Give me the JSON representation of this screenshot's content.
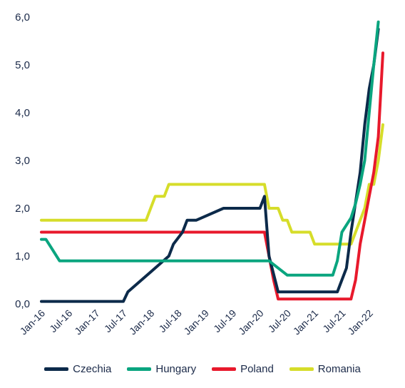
{
  "chart_data": {
    "type": "line",
    "title": "",
    "xlabel": "",
    "ylabel": "",
    "ylim": [
      0,
      6
    ],
    "y_ticks": [
      "0,0",
      "1,0",
      "2,0",
      "3,0",
      "4,0",
      "5,0",
      "6,0"
    ],
    "x_tick_labels": [
      "Jan-16",
      "Jul-16",
      "Jan-17",
      "Jul-17",
      "Jan-18",
      "Jul-18",
      "Jan-19",
      "Jul-19",
      "Jan-20",
      "Jul-20",
      "Jan-21",
      "Jul-21",
      "Jan-22"
    ],
    "x_range": [
      "2016-01",
      "2022-04"
    ],
    "grid": false,
    "legend_position": "bottom",
    "series": [
      {
        "name": "Czechia",
        "color": "#0c2a4a",
        "points": [
          [
            "2016-01",
            0.05
          ],
          [
            "2017-07",
            0.05
          ],
          [
            "2017-08",
            0.25
          ],
          [
            "2017-11",
            0.5
          ],
          [
            "2018-02",
            0.75
          ],
          [
            "2018-05",
            1.0
          ],
          [
            "2018-06",
            1.25
          ],
          [
            "2018-08",
            1.5
          ],
          [
            "2018-09",
            1.75
          ],
          [
            "2018-11",
            1.75
          ],
          [
            "2019-05",
            2.0
          ],
          [
            "2020-01",
            2.0
          ],
          [
            "2020-02",
            2.25
          ],
          [
            "2020-03",
            1.0
          ],
          [
            "2020-05",
            0.25
          ],
          [
            "2021-06",
            0.25
          ],
          [
            "2021-07",
            0.5
          ],
          [
            "2021-08",
            0.75
          ],
          [
            "2021-09",
            1.5
          ],
          [
            "2021-11",
            2.75
          ],
          [
            "2021-12",
            3.75
          ],
          [
            "2022-01",
            4.5
          ],
          [
            "2022-02",
            5.0
          ],
          [
            "2022-03",
            5.75
          ]
        ]
      },
      {
        "name": "Hungary",
        "color": "#0aa57f",
        "points": [
          [
            "2016-01",
            1.35
          ],
          [
            "2016-02",
            1.35
          ],
          [
            "2016-03",
            1.2
          ],
          [
            "2016-05",
            0.9
          ],
          [
            "2020-03",
            0.9
          ],
          [
            "2020-05",
            0.75
          ],
          [
            "2020-07",
            0.6
          ],
          [
            "2021-05",
            0.6
          ],
          [
            "2021-06",
            0.9
          ],
          [
            "2021-07",
            1.5
          ],
          [
            "2021-09",
            1.8
          ],
          [
            "2021-10",
            2.1
          ],
          [
            "2021-11",
            2.5
          ],
          [
            "2021-12",
            3.0
          ],
          [
            "2022-01",
            4.0
          ],
          [
            "2022-02",
            5.0
          ],
          [
            "2022-03",
            5.9
          ]
        ]
      },
      {
        "name": "Poland",
        "color": "#e8192c",
        "points": [
          [
            "2016-01",
            1.5
          ],
          [
            "2020-02",
            1.5
          ],
          [
            "2020-03",
            1.0
          ],
          [
            "2020-04",
            0.5
          ],
          [
            "2020-05",
            0.1
          ],
          [
            "2021-09",
            0.1
          ],
          [
            "2021-10",
            0.5
          ],
          [
            "2021-11",
            1.25
          ],
          [
            "2021-12",
            1.75
          ],
          [
            "2022-01",
            2.25
          ],
          [
            "2022-02",
            2.75
          ],
          [
            "2022-03",
            3.5
          ],
          [
            "2022-04",
            5.25
          ]
        ]
      },
      {
        "name": "Romania",
        "color": "#d6dd2a",
        "points": [
          [
            "2016-01",
            1.75
          ],
          [
            "2017-12",
            1.75
          ],
          [
            "2018-01",
            2.0
          ],
          [
            "2018-02",
            2.25
          ],
          [
            "2018-04",
            2.25
          ],
          [
            "2018-05",
            2.5
          ],
          [
            "2020-02",
            2.5
          ],
          [
            "2020-03",
            2.0
          ],
          [
            "2020-05",
            2.0
          ],
          [
            "2020-06",
            1.75
          ],
          [
            "2020-07",
            1.75
          ],
          [
            "2020-08",
            1.5
          ],
          [
            "2020-12",
            1.5
          ],
          [
            "2021-01",
            1.25
          ],
          [
            "2021-09",
            1.25
          ],
          [
            "2021-10",
            1.5
          ],
          [
            "2021-11",
            1.75
          ],
          [
            "2021-12",
            2.0
          ],
          [
            "2022-01",
            2.5
          ],
          [
            "2022-02",
            2.5
          ],
          [
            "2022-03",
            3.0
          ],
          [
            "2022-04",
            3.75
          ]
        ]
      }
    ]
  }
}
